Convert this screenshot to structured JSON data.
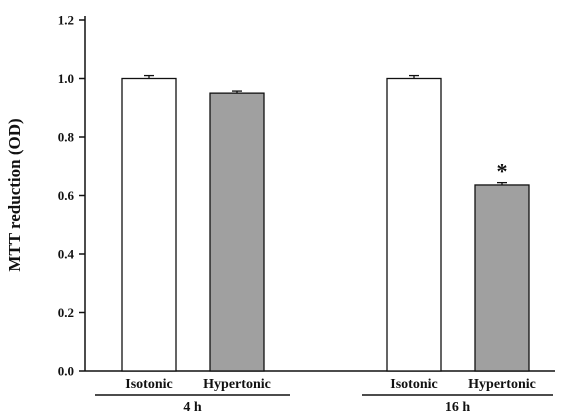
{
  "chart_data": {
    "type": "bar",
    "title": "",
    "ylabel": "MTT reduction (OD)",
    "xlabel": "",
    "ylim": [
      0.0,
      1.2
    ],
    "yticks": [
      "0.0",
      "0.2",
      "0.4",
      "0.6",
      "0.8",
      "1.0",
      "1.2"
    ],
    "groups": [
      {
        "label": "4 h",
        "bars": [
          {
            "category": "Isotonic",
            "value": 1.0,
            "error": 0.01,
            "color": "#ffffff",
            "annotation": ""
          },
          {
            "category": "Hypertonic",
            "value": 0.95,
            "error": 0.007,
            "color": "#a0a0a0",
            "annotation": ""
          }
        ]
      },
      {
        "label": "16 h",
        "bars": [
          {
            "category": "Isotonic",
            "value": 1.0,
            "error": 0.01,
            "color": "#ffffff",
            "annotation": ""
          },
          {
            "category": "Hypertonic",
            "value": 0.636,
            "error": 0.008,
            "color": "#a0a0a0",
            "annotation": "*"
          }
        ]
      }
    ],
    "grid": false,
    "legend": "none"
  }
}
